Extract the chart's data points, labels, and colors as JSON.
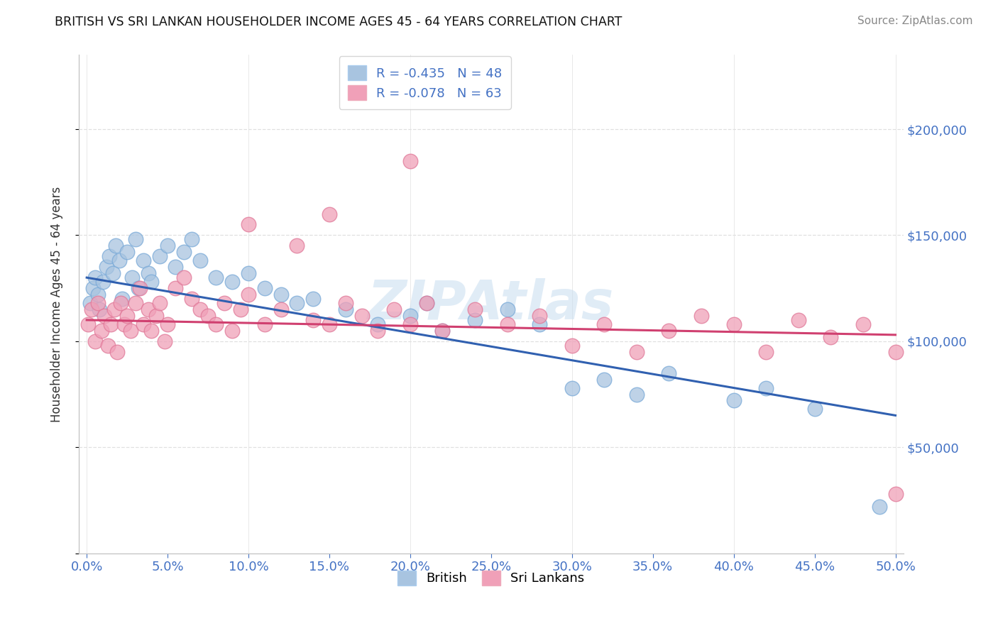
{
  "title": "BRITISH VS SRI LANKAN HOUSEHOLDER INCOME AGES 45 - 64 YEARS CORRELATION CHART",
  "source": "Source: ZipAtlas.com",
  "ylabel": "Householder Income Ages 45 - 64 years",
  "xlim": [
    -0.005,
    0.505
  ],
  "ylim": [
    0,
    235000
  ],
  "xticks": [
    0.0,
    0.05,
    0.1,
    0.15,
    0.2,
    0.25,
    0.3,
    0.35,
    0.4,
    0.45,
    0.5
  ],
  "yticks": [
    50000,
    100000,
    150000,
    200000
  ],
  "background_color": "#ffffff",
  "grid_color": "#e0e0e0",
  "axis_label_color": "#4472c4",
  "british_color": "#a8c4e0",
  "srilankans_color": "#f0a0b8",
  "british_line_color": "#3060b0",
  "srilankans_line_color": "#d04070",
  "legend_r_british": "R = -0.435",
  "legend_n_british": "N = 48",
  "legend_r_srilankans": "R = -0.078",
  "legend_n_srilankans": "N = 63",
  "watermark": "ZIPAtlas",
  "british_scatter_x": [
    0.002,
    0.004,
    0.005,
    0.007,
    0.008,
    0.01,
    0.012,
    0.014,
    0.016,
    0.018,
    0.02,
    0.022,
    0.025,
    0.028,
    0.03,
    0.032,
    0.035,
    0.038,
    0.04,
    0.045,
    0.05,
    0.055,
    0.06,
    0.065,
    0.07,
    0.08,
    0.09,
    0.1,
    0.11,
    0.12,
    0.13,
    0.14,
    0.16,
    0.18,
    0.2,
    0.21,
    0.22,
    0.24,
    0.26,
    0.28,
    0.3,
    0.32,
    0.34,
    0.36,
    0.4,
    0.42,
    0.45,
    0.49
  ],
  "british_scatter_y": [
    118000,
    125000,
    130000,
    122000,
    115000,
    128000,
    135000,
    140000,
    132000,
    145000,
    138000,
    120000,
    142000,
    130000,
    148000,
    125000,
    138000,
    132000,
    128000,
    140000,
    145000,
    135000,
    142000,
    148000,
    138000,
    130000,
    128000,
    132000,
    125000,
    122000,
    118000,
    120000,
    115000,
    108000,
    112000,
    118000,
    105000,
    110000,
    115000,
    108000,
    78000,
    82000,
    75000,
    85000,
    72000,
    78000,
    68000,
    22000
  ],
  "srilankans_scatter_x": [
    0.001,
    0.003,
    0.005,
    0.007,
    0.009,
    0.011,
    0.013,
    0.015,
    0.017,
    0.019,
    0.021,
    0.023,
    0.025,
    0.027,
    0.03,
    0.033,
    0.035,
    0.038,
    0.04,
    0.043,
    0.045,
    0.048,
    0.05,
    0.055,
    0.06,
    0.065,
    0.07,
    0.075,
    0.08,
    0.085,
    0.09,
    0.095,
    0.1,
    0.11,
    0.12,
    0.13,
    0.14,
    0.15,
    0.16,
    0.17,
    0.18,
    0.19,
    0.2,
    0.21,
    0.22,
    0.24,
    0.26,
    0.28,
    0.3,
    0.32,
    0.34,
    0.36,
    0.38,
    0.4,
    0.42,
    0.44,
    0.46,
    0.48,
    0.5,
    0.2,
    0.15,
    0.1,
    0.5
  ],
  "srilankans_scatter_y": [
    108000,
    115000,
    100000,
    118000,
    105000,
    112000,
    98000,
    108000,
    115000,
    95000,
    118000,
    108000,
    112000,
    105000,
    118000,
    125000,
    108000,
    115000,
    105000,
    112000,
    118000,
    100000,
    108000,
    125000,
    130000,
    120000,
    115000,
    112000,
    108000,
    118000,
    105000,
    115000,
    122000,
    108000,
    115000,
    145000,
    110000,
    108000,
    118000,
    112000,
    105000,
    115000,
    108000,
    118000,
    105000,
    115000,
    108000,
    112000,
    98000,
    108000,
    95000,
    105000,
    112000,
    108000,
    95000,
    110000,
    102000,
    108000,
    95000,
    185000,
    160000,
    155000,
    28000
  ],
  "blue_line_x": [
    0.0,
    0.5
  ],
  "blue_line_y": [
    130000,
    65000
  ],
  "pink_line_x": [
    0.0,
    0.5
  ],
  "pink_line_y": [
    110000,
    103000
  ]
}
